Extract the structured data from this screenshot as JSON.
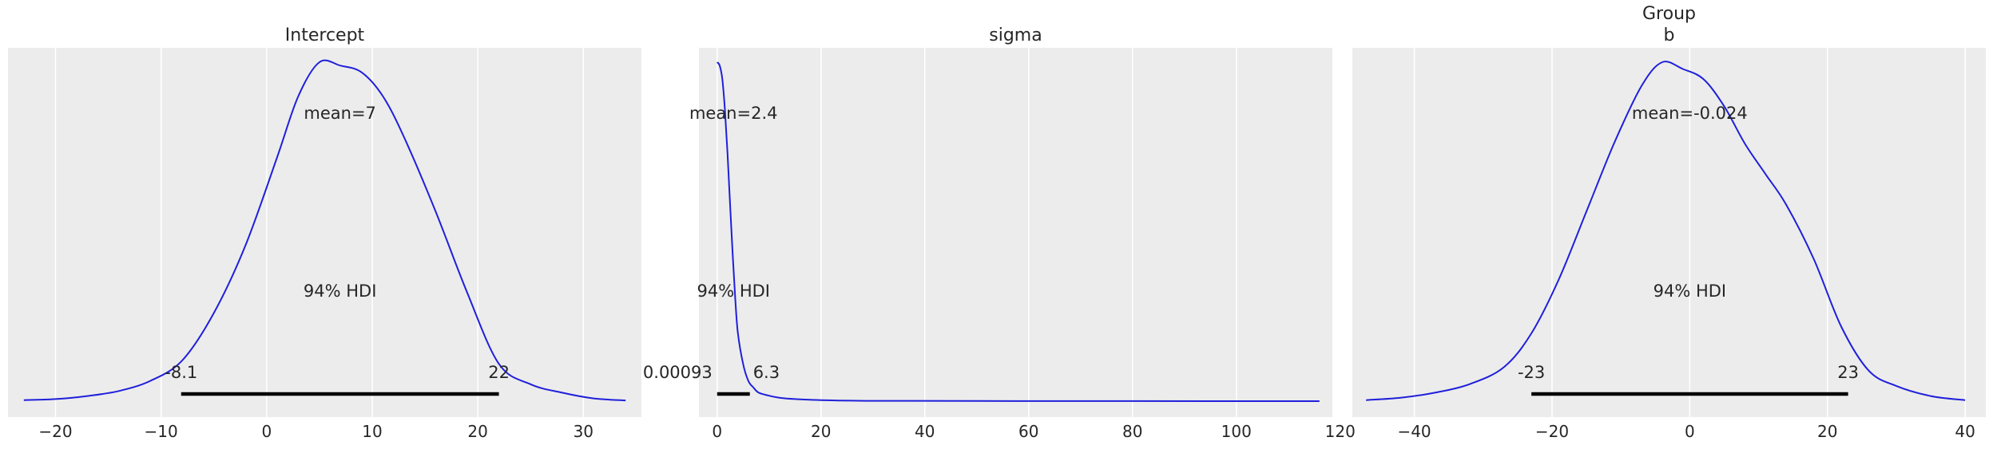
{
  "chart_data": [
    {
      "type": "line",
      "title": "Intercept",
      "color": "#1f1fdb",
      "background": "#ececec",
      "grid": true,
      "xlim": [
        -24.5,
        35.5
      ],
      "xticks": [
        -20,
        -10,
        0,
        10,
        20,
        30
      ],
      "xtick_labels": [
        "−20",
        "−10",
        "0",
        "10",
        "20",
        "30"
      ],
      "density_x": [
        -23,
        -20,
        -17,
        -14,
        -11,
        -8,
        -5,
        -2,
        1,
        3,
        5,
        7,
        9,
        11,
        13,
        16,
        19,
        22,
        25,
        28,
        31,
        34
      ],
      "density_y": [
        0.003,
        0.006,
        0.015,
        0.03,
        0.06,
        0.12,
        0.26,
        0.46,
        0.72,
        0.9,
        1.0,
        0.99,
        0.97,
        0.9,
        0.78,
        0.56,
        0.32,
        0.11,
        0.05,
        0.025,
        0.008,
        0.002
      ],
      "mean_label": "mean=7",
      "hdi_label": "94% HDI",
      "hdi": [
        -8.1,
        22
      ],
      "hdi_low_label": "-8.1",
      "hdi_high_label": "22"
    },
    {
      "type": "line",
      "title": "sigma",
      "color": "#1f1fdb",
      "background": "#ececec",
      "grid": true,
      "xlim": [
        -3.5,
        118.5
      ],
      "xticks": [
        0,
        20,
        40,
        60,
        80,
        100,
        120
      ],
      "xtick_labels": [
        "0",
        "20",
        "40",
        "60",
        "80",
        "100",
        "120"
      ],
      "density_x": [
        0,
        0.5,
        1,
        1.5,
        2,
        2.5,
        3,
        3.5,
        4,
        5,
        6,
        7,
        8,
        10,
        12,
        15,
        20,
        30,
        50,
        80,
        116
      ],
      "density_y": [
        1.0,
        0.99,
        0.95,
        0.86,
        0.73,
        0.58,
        0.43,
        0.3,
        0.2,
        0.11,
        0.06,
        0.04,
        0.025,
        0.016,
        0.01,
        0.006,
        0.003,
        0.001,
        0.0005,
        0.0002,
        0.0
      ],
      "mean_label": "mean=2.4",
      "hdi_label": "94% HDI",
      "hdi": [
        0.00093,
        6.3
      ],
      "hdi_low_label": "0.00093",
      "hdi_high_label": "6.3"
    },
    {
      "type": "line",
      "title": "Group\nb",
      "color": "#1f1fdb",
      "background": "#ececec",
      "grid": true,
      "xlim": [
        -49,
        43
      ],
      "xticks": [
        -40,
        -20,
        0,
        20,
        40
      ],
      "xtick_labels": [
        "−40",
        "−20",
        "0",
        "20",
        "40"
      ],
      "density_x": [
        -47,
        -42,
        -37,
        -32,
        -27,
        -23,
        -19,
        -15,
        -11,
        -7,
        -4,
        -1,
        2,
        5,
        8,
        11,
        14,
        18,
        22,
        26,
        30,
        35,
        40
      ],
      "density_y": [
        0.003,
        0.01,
        0.025,
        0.05,
        0.1,
        0.2,
        0.36,
        0.56,
        0.76,
        0.93,
        1.0,
        0.98,
        0.95,
        0.87,
        0.76,
        0.67,
        0.58,
        0.42,
        0.22,
        0.09,
        0.045,
        0.015,
        0.003
      ],
      "mean_label": "mean=-0.024",
      "hdi_label": "94% HDI",
      "hdi": [
        -23,
        23
      ],
      "hdi_low_label": "-23",
      "hdi_high_label": "23"
    }
  ]
}
